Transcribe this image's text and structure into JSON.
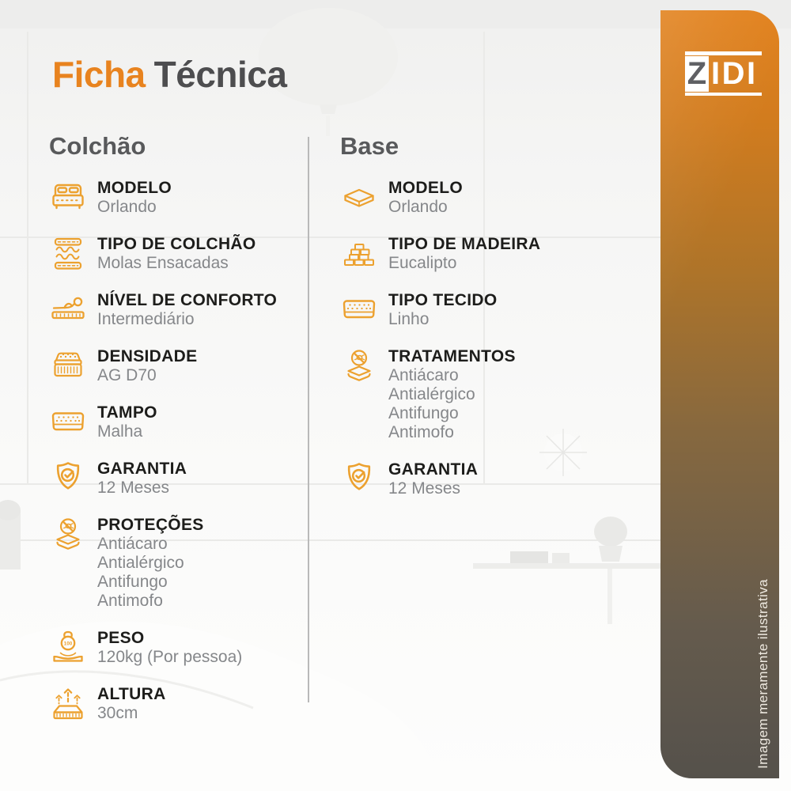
{
  "header": {
    "title_accent": "Ficha",
    "title_rest": "Técnica"
  },
  "brand": {
    "logo_z": "Z",
    "logo_rest": "IDI"
  },
  "sidebar": {
    "note": "Imagem meramente ilustrativa"
  },
  "colors": {
    "accent_orange": "#E8831F",
    "icon_orange": "#ECA12F",
    "title_gray": "#4D4D4F",
    "heading_gray": "#58595B",
    "label_black": "#1D1D1B",
    "value_gray": "#85878A",
    "sidebar_gradient_top": "#E2811C",
    "sidebar_gradient_bottom": "#55514B",
    "divider_gray": "#B9B9B9"
  },
  "columns": [
    {
      "heading": "Colchão",
      "items": [
        {
          "icon": "bed-icon",
          "label": "MODELO",
          "values": [
            "Orlando"
          ]
        },
        {
          "icon": "pocket-springs-icon",
          "label": "TIPO DE COLCHÃO",
          "values": [
            "Molas Ensacadas"
          ]
        },
        {
          "icon": "comfort-level-icon",
          "label": "NÍVEL DE CONFORTO",
          "values": [
            "Intermediário"
          ]
        },
        {
          "icon": "density-layers-icon",
          "label": "DENSIDADE",
          "values": [
            "AG D70"
          ]
        },
        {
          "icon": "mattress-top-icon",
          "label": "TAMPO",
          "values": [
            "Malha"
          ]
        },
        {
          "icon": "shield-check-icon",
          "label": "GARANTIA",
          "values": [
            "12 Meses"
          ]
        },
        {
          "icon": "anti-mite-icon",
          "label": "PROTEÇÕES",
          "values": [
            "Antiácaro",
            "Antialérgico",
            "Antifungo",
            "Antimofo"
          ]
        },
        {
          "icon": "weight-icon",
          "label": "PESO",
          "values": [
            "120kg (Por pessoa)"
          ]
        },
        {
          "icon": "height-icon",
          "label": "ALTURA",
          "values": [
            "30cm"
          ]
        }
      ]
    },
    {
      "heading": "Base",
      "items": [
        {
          "icon": "base-slab-icon",
          "label": "MODELO",
          "values": [
            "Orlando"
          ]
        },
        {
          "icon": "wood-stack-icon",
          "label": "TIPO DE MADEIRA",
          "values": [
            "Eucalipto"
          ]
        },
        {
          "icon": "fabric-icon",
          "label": "TIPO TECIDO",
          "values": [
            "Linho"
          ]
        },
        {
          "icon": "anti-mite-icon",
          "label": "TRATAMENTOS",
          "values": [
            "Antiácaro",
            "Antialérgico",
            "Antifungo",
            "Antimofo"
          ]
        },
        {
          "icon": "shield-check-icon",
          "label": "GARANTIA",
          "values": [
            "12 Meses"
          ]
        }
      ]
    }
  ]
}
